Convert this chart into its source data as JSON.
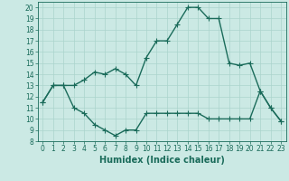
{
  "xlabel": "Humidex (Indice chaleur)",
  "bg_color": "#cbe9e4",
  "line_color": "#1a6b5a",
  "xlim": [
    -0.5,
    23.5
  ],
  "ylim": [
    8,
    20.5
  ],
  "x": [
    0,
    1,
    2,
    3,
    4,
    5,
    6,
    7,
    8,
    9,
    10,
    11,
    12,
    13,
    14,
    15,
    16,
    17,
    18,
    19,
    20,
    21,
    22,
    23
  ],
  "y_upper": [
    11.5,
    13.0,
    13.0,
    13.0,
    13.5,
    14.2,
    14.0,
    14.5,
    14.0,
    13.0,
    15.5,
    17.0,
    17.0,
    18.5,
    20.0,
    20.0,
    19.0,
    19.0,
    15.0,
    14.8,
    15.0,
    12.5,
    11.0,
    9.8
  ],
  "y_lower": [
    11.5,
    13.0,
    13.0,
    11.0,
    10.5,
    9.5,
    9.0,
    8.5,
    9.0,
    9.0,
    10.5,
    10.5,
    10.5,
    10.5,
    10.5,
    10.5,
    10.0,
    10.0,
    10.0,
    10.0,
    10.0,
    12.5,
    11.0,
    9.8
  ],
  "xticks": [
    0,
    1,
    2,
    3,
    4,
    5,
    6,
    7,
    8,
    9,
    10,
    11,
    12,
    13,
    14,
    15,
    16,
    17,
    18,
    19,
    20,
    21,
    22,
    23
  ],
  "yticks": [
    8,
    9,
    10,
    11,
    12,
    13,
    14,
    15,
    16,
    17,
    18,
    19,
    20
  ],
  "grid_color": "#aad4cc",
  "markersize": 2.0,
  "linewidth": 1.0,
  "tick_fontsize": 5.5,
  "xlabel_fontsize": 7.0
}
